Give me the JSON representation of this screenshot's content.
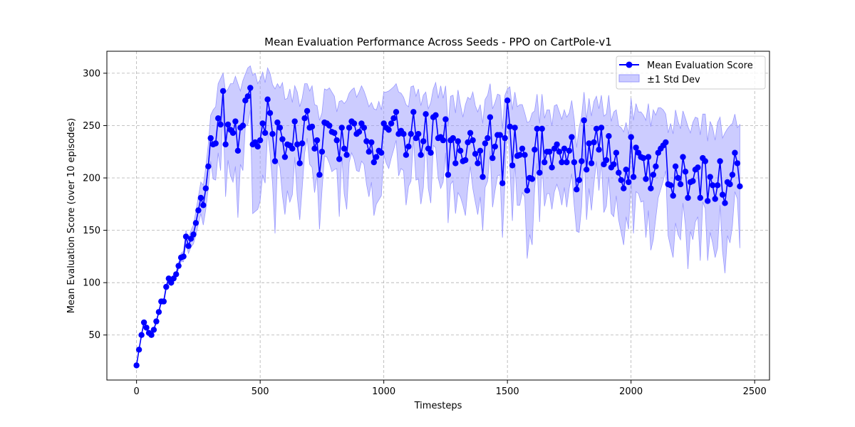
{
  "chart_data": {
    "type": "line",
    "title": "Mean Evaluation Performance Across Seeds - PPO on CartPole-v1",
    "xlabel": "Timesteps",
    "ylabel": "Mean Evaluation Score (over 10 episodes)",
    "xlim": [
      -120,
      2560
    ],
    "ylim": [
      7,
      321
    ],
    "xticks": [
      0,
      500,
      1000,
      1500,
      2000,
      2500
    ],
    "yticks": [
      50,
      100,
      150,
      200,
      250,
      300
    ],
    "grid": true,
    "legend_position": "top-right",
    "colors": {
      "line": "#0000ff",
      "band": "#9999ff"
    },
    "series": [
      {
        "name": "Mean Evaluation Score",
        "x": [
          0,
          10,
          20,
          30,
          40,
          50,
          60,
          70,
          80,
          90,
          100,
          110,
          120,
          130,
          140,
          150,
          160,
          170,
          180,
          190,
          200,
          210,
          220,
          230,
          240,
          250,
          260,
          270,
          280,
          290,
          300,
          310,
          320,
          330,
          340,
          350,
          360,
          370,
          380,
          390,
          400,
          410,
          420,
          430,
          440,
          450,
          460,
          470,
          480,
          490,
          500,
          510,
          520,
          530,
          540,
          550,
          560,
          570,
          580,
          590,
          600,
          610,
          620,
          630,
          640,
          650,
          660,
          670,
          680,
          690,
          700,
          710,
          720,
          730,
          740,
          750,
          760,
          770,
          780,
          790,
          800,
          810,
          820,
          830,
          840,
          850,
          860,
          870,
          880,
          890,
          900,
          910,
          920,
          930,
          940,
          950,
          960,
          970,
          980,
          990,
          1000,
          1010,
          1020,
          1030,
          1040,
          1050,
          1060,
          1070,
          1080,
          1090,
          1100,
          1110,
          1120,
          1130,
          1140,
          1150,
          1160,
          1170,
          1180,
          1190,
          1200,
          1210,
          1220,
          1230,
          1240,
          1250,
          1260,
          1270,
          1280,
          1290,
          1300,
          1310,
          1320,
          1330,
          1340,
          1350,
          1360,
          1370,
          1380,
          1390,
          1400,
          1410,
          1420,
          1430,
          1440,
          1450,
          1460,
          1470,
          1480,
          1490,
          1500,
          1510,
          1520,
          1530,
          1540,
          1550,
          1560,
          1570,
          1580,
          1590,
          1600,
          1610,
          1620,
          1630,
          1640,
          1650,
          1660,
          1670,
          1680,
          1690,
          1700,
          1710,
          1720,
          1730,
          1740,
          1750,
          1760,
          1770,
          1780,
          1790,
          1800,
          1810,
          1820,
          1830,
          1840,
          1850,
          1860,
          1870,
          1880,
          1890,
          1900,
          1910,
          1920,
          1930,
          1940,
          1950,
          1960,
          1970,
          1980,
          1990,
          2000,
          2010,
          2020,
          2030,
          2040,
          2050,
          2060,
          2070,
          2080,
          2090,
          2100,
          2110,
          2120,
          2130,
          2140,
          2150,
          2160,
          2170,
          2180,
          2190,
          2200,
          2210,
          2220,
          2230,
          2240,
          2250,
          2260,
          2270,
          2280,
          2290,
          2300,
          2310,
          2320,
          2330,
          2340,
          2350,
          2360,
          2370,
          2380,
          2390,
          2400,
          2410,
          2420,
          2430,
          2440
        ],
        "values": [
          21,
          36,
          50,
          62,
          57,
          52,
          50,
          55,
          63,
          72,
          82,
          82,
          96,
          104,
          100,
          104,
          108,
          116,
          124,
          125,
          144,
          135,
          142,
          146,
          157,
          169,
          181,
          174,
          190,
          211,
          238,
          232,
          233,
          257,
          251,
          283,
          232,
          251,
          246,
          243,
          254,
          226,
          248,
          250,
          274,
          278,
          286,
          232,
          234,
          230,
          236,
          252,
          243,
          275,
          262,
          242,
          216,
          253,
          248,
          237,
          220,
          232,
          231,
          228,
          254,
          232,
          214,
          233,
          257,
          264,
          248,
          249,
          228,
          236,
          203,
          225,
          253,
          252,
          250,
          244,
          243,
          236,
          218,
          248,
          228,
          222,
          248,
          254,
          252,
          242,
          244,
          252,
          248,
          235,
          225,
          234,
          215,
          220,
          226,
          224,
          252,
          248,
          246,
          252,
          257,
          263,
          242,
          245,
          242,
          222,
          230,
          242,
          263,
          238,
          242,
          222,
          235,
          261,
          228,
          224,
          258,
          260,
          238,
          239,
          236,
          256,
          203,
          236,
          238,
          214,
          235,
          226,
          216,
          217,
          234,
          243,
          236,
          223,
          214,
          226,
          201,
          233,
          238,
          258,
          219,
          230,
          241,
          241,
          195,
          238,
          274,
          249,
          212,
          248,
          221,
          222,
          228,
          222,
          188,
          200,
          199,
          227,
          247,
          205,
          247,
          215,
          225,
          225,
          210,
          228,
          232,
          225,
          215,
          228,
          215,
          226,
          239,
          215,
          189,
          198,
          216,
          255,
          208,
          233,
          214,
          234,
          247,
          227,
          248,
          213,
          217,
          240,
          210,
          213,
          224,
          205,
          198,
          190,
          208,
          196,
          239,
          201,
          229,
          224,
          220,
          219,
          199,
          220,
          190,
          203,
          211,
          224,
          228,
          231,
          234,
          194,
          193,
          183,
          211,
          200,
          194,
          220,
          206,
          181,
          196,
          197,
          208,
          210,
          181,
          219,
          216,
          178,
          201,
          193,
          180,
          193,
          216,
          184,
          176,
          196,
          194,
          203,
          224,
          214,
          192
        ]
      },
      {
        "name": "±1 Std Dev",
        "upper": [
          21,
          36,
          51,
          63,
          58,
          53,
          51,
          56,
          64,
          73,
          83,
          84,
          98,
          106,
          103,
          107,
          111,
          119,
          128,
          130,
          150,
          142,
          150,
          155,
          168,
          182,
          196,
          193,
          210,
          232,
          260,
          265,
          268,
          290,
          295,
          300,
          282,
          285,
          290,
          290,
          297,
          290,
          283,
          293,
          299,
          305,
          307,
          298,
          300,
          290,
          294,
          301,
          291,
          305,
          300,
          289,
          285,
          290,
          286,
          291,
          275,
          276,
          285,
          272,
          288,
          282,
          268,
          276,
          290,
          290,
          283,
          288,
          270,
          269,
          255,
          262,
          285,
          284,
          286,
          282,
          278,
          263,
          273,
          274,
          271,
          274,
          281,
          284,
          286,
          277,
          282,
          288,
          283,
          276,
          268,
          272,
          266,
          265,
          273,
          265,
          282,
          282,
          283,
          285,
          287,
          290,
          282,
          281,
          277,
          270,
          268,
          287,
          288,
          278,
          285,
          269,
          279,
          282,
          266,
          272,
          285,
          291,
          276,
          288,
          276,
          288,
          249,
          278,
          279,
          262,
          284,
          270,
          258,
          270,
          277,
          275,
          282,
          269,
          263,
          270,
          252,
          275,
          279,
          290,
          266,
          272,
          280,
          279,
          247,
          279,
          285,
          287,
          265,
          282,
          268,
          270,
          270,
          262,
          253,
          254,
          262,
          264,
          280,
          252,
          280,
          257,
          265,
          265,
          250,
          269,
          270,
          263,
          256,
          265,
          258,
          262,
          274,
          256,
          229,
          248,
          259,
          282,
          256,
          276,
          259,
          273,
          278,
          266,
          279,
          259,
          261,
          279,
          254,
          263,
          265,
          250,
          248,
          244,
          253,
          241,
          276,
          255,
          271,
          263,
          263,
          260,
          255,
          271,
          249,
          265,
          260,
          267,
          267,
          265,
          261,
          243,
          252,
          242,
          265,
          254,
          247,
          264,
          257,
          249,
          243,
          253,
          258,
          257,
          241,
          261,
          261,
          235,
          254,
          248,
          236,
          253,
          258,
          238,
          243,
          247,
          250,
          252,
          261,
          248,
          251
        ],
        "lower": [
          21,
          36,
          49,
          61,
          56,
          51,
          49,
          54,
          62,
          71,
          81,
          80,
          94,
          102,
          97,
          101,
          105,
          113,
          120,
          120,
          138,
          128,
          134,
          137,
          146,
          156,
          166,
          155,
          170,
          190,
          216,
          199,
          198,
          224,
          207,
          266,
          182,
          217,
          202,
          196,
          211,
          162,
          213,
          207,
          249,
          251,
          265,
          166,
          168,
          170,
          178,
          203,
          195,
          245,
          224,
          195,
          147,
          216,
          210,
          183,
          165,
          188,
          177,
          184,
          220,
          182,
          160,
          190,
          224,
          238,
          213,
          210,
          186,
          203,
          151,
          188,
          221,
          220,
          214,
          206,
          208,
          209,
          163,
          222,
          185,
          170,
          215,
          224,
          218,
          207,
          206,
          216,
          213,
          194,
          182,
          196,
          164,
          175,
          179,
          183,
          222,
          214,
          209,
          219,
          227,
          236,
          202,
          209,
          207,
          174,
          192,
          197,
          238,
          198,
          199,
          175,
          191,
          240,
          190,
          176,
          231,
          229,
          200,
          190,
          196,
          224,
          157,
          194,
          197,
          166,
          186,
          182,
          174,
          164,
          191,
          211,
          190,
          177,
          165,
          182,
          150,
          191,
          197,
          226,
          172,
          188,
          202,
          203,
          143,
          197,
          263,
          211,
          159,
          214,
          174,
          174,
          186,
          182,
          123,
          146,
          136,
          190,
          214,
          158,
          214,
          173,
          185,
          185,
          170,
          187,
          194,
          187,
          174,
          191,
          172,
          190,
          204,
          174,
          149,
          148,
          173,
          228,
          160,
          190,
          169,
          195,
          216,
          188,
          217,
          167,
          173,
          201,
          166,
          163,
          183,
          160,
          148,
          136,
          163,
          151,
          202,
          147,
          187,
          185,
          177,
          178,
          143,
          169,
          131,
          141,
          162,
          181,
          189,
          197,
          207,
          145,
          134,
          124,
          157,
          146,
          141,
          176,
          155,
          113,
          149,
          141,
          158,
          163,
          121,
          177,
          171,
          121,
          148,
          138,
          124,
          133,
          174,
          130,
          109,
          145,
          138,
          154,
          187,
          180,
          133
        ]
      }
    ]
  }
}
